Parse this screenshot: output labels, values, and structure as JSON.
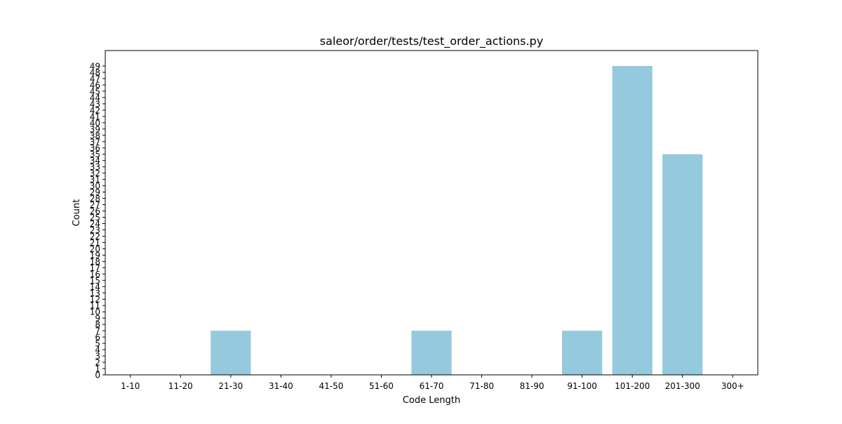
{
  "chart_data": {
    "type": "bar",
    "title": "saleor/order/tests/test_order_actions.py",
    "xlabel": "Code Length",
    "ylabel": "Count",
    "categories": [
      "1-10",
      "11-20",
      "21-30",
      "31-40",
      "41-50",
      "51-60",
      "61-70",
      "71-80",
      "81-90",
      "91-100",
      "101-200",
      "201-300",
      "300+"
    ],
    "values": [
      0,
      0,
      7,
      0,
      0,
      0,
      7,
      0,
      0,
      7,
      49,
      35,
      0
    ],
    "ylim": [
      0,
      51.45
    ],
    "yticks": [
      0,
      1,
      2,
      3,
      4,
      5,
      6,
      7,
      8,
      9,
      10,
      11,
      12,
      13,
      14,
      15,
      16,
      17,
      18,
      19,
      20,
      21,
      22,
      23,
      24,
      25,
      26,
      27,
      28,
      29,
      30,
      31,
      32,
      33,
      34,
      35,
      36,
      37,
      38,
      39,
      40,
      41,
      42,
      43,
      44,
      45,
      46,
      47,
      48,
      49
    ],
    "bar_color": "#95c9dd",
    "grid": false,
    "legend": "none"
  }
}
